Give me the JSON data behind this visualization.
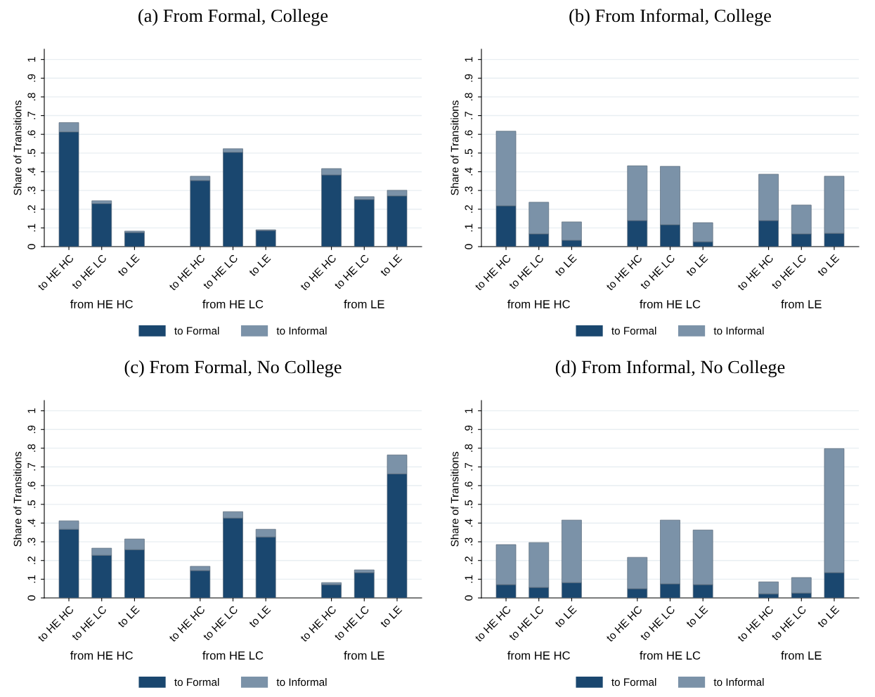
{
  "chart_data": [
    {
      "type": "bar",
      "title": "(a) From Formal, College",
      "ylabel": "Share of Transitions",
      "stacked": true,
      "grid": "y",
      "legend": "bottom",
      "categories": [
        "to HE HC",
        "to HE LC",
        "to LE",
        null,
        "to HE HC",
        "to HE LC",
        "to LE",
        null,
        "to HE HC",
        "to HE LC",
        "to LE"
      ],
      "annotations": [
        "from HE HC",
        "from HE LC",
        "from LE"
      ],
      "ylim": [
        0,
        1.055
      ],
      "yticks": [
        0,
        {
          "value": 0.1,
          "label": ".1"
        },
        {
          "value": 0.2,
          "label": ".2"
        },
        {
          "value": 0.3,
          "label": ".3"
        },
        {
          "value": 0.4,
          "label": ".4"
        },
        {
          "value": 0.5,
          "label": ".5"
        },
        {
          "value": 0.6,
          "label": ".6"
        },
        {
          "value": 0.7,
          "label": ".7"
        },
        {
          "value": 0.8,
          "label": ".8"
        },
        {
          "value": 0.9,
          "label": ".9"
        },
        1
      ],
      "series": [
        {
          "name": "to Formal",
          "color": "#1a476f",
          "values": [
            0.613,
            0.23,
            0.075,
            null,
            0.353,
            0.504,
            0.086,
            null,
            0.383,
            0.252,
            0.271
          ]
        },
        {
          "name": "to Informal",
          "color": "#7b92a8",
          "values": [
            0.05,
            0.015,
            0.008,
            null,
            0.023,
            0.019,
            0.004,
            null,
            0.034,
            0.015,
            0.03
          ]
        }
      ]
    },
    {
      "type": "bar",
      "title": "(b) From Informal, College",
      "ylabel": "Share of Transitions",
      "stacked": true,
      "grid": "y",
      "legend": "bottom",
      "categories": [
        "to HE HC",
        "to HE LC",
        "to LE",
        null,
        "to HE HC",
        "to HE LC",
        "to LE",
        null,
        "to HE HC",
        "to HE LC",
        "to LE"
      ],
      "annotations": [
        "from HE HC",
        "from HE LC",
        "from LE"
      ],
      "ylim": [
        0,
        1.055
      ],
      "yticks": [
        0,
        {
          "value": 0.1,
          "label": ".1"
        },
        {
          "value": 0.2,
          "label": ".2"
        },
        {
          "value": 0.3,
          "label": ".3"
        },
        {
          "value": 0.4,
          "label": ".4"
        },
        {
          "value": 0.5,
          "label": ".5"
        },
        {
          "value": 0.6,
          "label": ".6"
        },
        {
          "value": 0.7,
          "label": ".7"
        },
        {
          "value": 0.8,
          "label": ".8"
        },
        {
          "value": 0.9,
          "label": ".9"
        },
        1
      ],
      "series": [
        {
          "name": "to Formal",
          "color": "#1a476f",
          "values": [
            0.218,
            0.068,
            0.034,
            null,
            0.139,
            0.117,
            0.026,
            null,
            0.139,
            0.068,
            0.071
          ]
        },
        {
          "name": "to Informal",
          "color": "#7b92a8",
          "values": [
            0.399,
            0.169,
            0.098,
            null,
            0.293,
            0.312,
            0.102,
            null,
            0.248,
            0.154,
            0.305
          ]
        }
      ]
    },
    {
      "type": "bar",
      "title": "(c) From Formal, No College",
      "ylabel": "Share of Transitions",
      "stacked": true,
      "grid": "y",
      "legend": "bottom",
      "categories": [
        "to HE HC",
        "to HE LC",
        "to LE",
        null,
        "to HE HC",
        "to HE LC",
        "to LE",
        null,
        "to HE HC",
        "to HE LC",
        "to LE"
      ],
      "annotations": [
        "from HE HC",
        "from HE LC",
        "from LE"
      ],
      "ylim": [
        0,
        1.055
      ],
      "yticks": [
        0,
        {
          "value": 0.1,
          "label": ".1"
        },
        {
          "value": 0.2,
          "label": ".2"
        },
        {
          "value": 0.3,
          "label": ".3"
        },
        {
          "value": 0.4,
          "label": ".4"
        },
        {
          "value": 0.5,
          "label": ".5"
        },
        {
          "value": 0.6,
          "label": ".6"
        },
        {
          "value": 0.7,
          "label": ".7"
        },
        {
          "value": 0.8,
          "label": ".8"
        },
        {
          "value": 0.9,
          "label": ".9"
        },
        1
      ],
      "series": [
        {
          "name": "to Formal",
          "color": "#1a476f",
          "values": [
            0.367,
            0.228,
            0.258,
            null,
            0.146,
            0.427,
            0.326,
            null,
            0.071,
            0.135,
            0.663
          ]
        },
        {
          "name": "to Informal",
          "color": "#7b92a8",
          "values": [
            0.045,
            0.038,
            0.057,
            null,
            0.023,
            0.034,
            0.041,
            null,
            0.011,
            0.015,
            0.101
          ]
        }
      ]
    },
    {
      "type": "bar",
      "title": "(d) From Informal, No College",
      "ylabel": "Share of Transitions",
      "stacked": true,
      "grid": "y",
      "legend": "bottom",
      "categories": [
        "to HE HC",
        "to HE LC",
        "to LE",
        null,
        "to HE HC",
        "to HE LC",
        "to LE",
        null,
        "to HE HC",
        "to HE LC",
        "to LE"
      ],
      "annotations": [
        "from HE HC",
        "from HE LC",
        "from LE"
      ],
      "ylim": [
        0,
        1.055
      ],
      "yticks": [
        0,
        {
          "value": 0.1,
          "label": ".1"
        },
        {
          "value": 0.2,
          "label": ".2"
        },
        {
          "value": 0.3,
          "label": ".3"
        },
        {
          "value": 0.4,
          "label": ".4"
        },
        {
          "value": 0.5,
          "label": ".5"
        },
        {
          "value": 0.6,
          "label": ".6"
        },
        {
          "value": 0.7,
          "label": ".7"
        },
        {
          "value": 0.8,
          "label": ".8"
        },
        {
          "value": 0.9,
          "label": ".9"
        },
        1
      ],
      "series": [
        {
          "name": "to Formal",
          "color": "#1a476f",
          "values": [
            0.071,
            0.056,
            0.082,
            null,
            0.049,
            0.075,
            0.071,
            null,
            0.022,
            0.026,
            0.135
          ]
        },
        {
          "name": "to Informal",
          "color": "#7b92a8",
          "values": [
            0.214,
            0.24,
            0.334,
            null,
            0.168,
            0.341,
            0.292,
            null,
            0.064,
            0.083,
            0.663
          ]
        }
      ]
    }
  ]
}
